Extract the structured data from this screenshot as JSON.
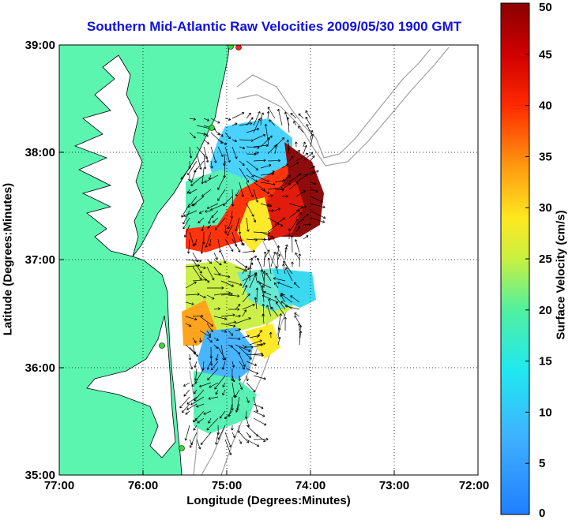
{
  "title": "Southern Mid-Atlantic Raw Velocities 2009/05/30 1900 GMT",
  "chart_data": {
    "type": "map",
    "xlabel": "Longitude (Degrees:Minutes)",
    "ylabel": "Latitude (Degrees:Minutes)",
    "x_ticks": [
      "77:00",
      "76:00",
      "75:00",
      "74:00",
      "73:00",
      "72:00"
    ],
    "y_ticks": [
      "39:00",
      "38:00",
      "37:00",
      "36:00",
      "35:00"
    ],
    "xlim": [
      -77,
      -72
    ],
    "ylim": [
      35,
      39
    ],
    "grid": true,
    "colorbar": {
      "label": "Surface Velocity (cm/s)",
      "min": 0,
      "max": 50,
      "ticks": [
        "0",
        "5",
        "10",
        "15",
        "20",
        "25",
        "30",
        "35",
        "40",
        "45",
        "50"
      ]
    }
  },
  "colors": {
    "land": "#5cf5b0",
    "title": "#1010e0",
    "bathymetry": "#a0a0a0"
  }
}
